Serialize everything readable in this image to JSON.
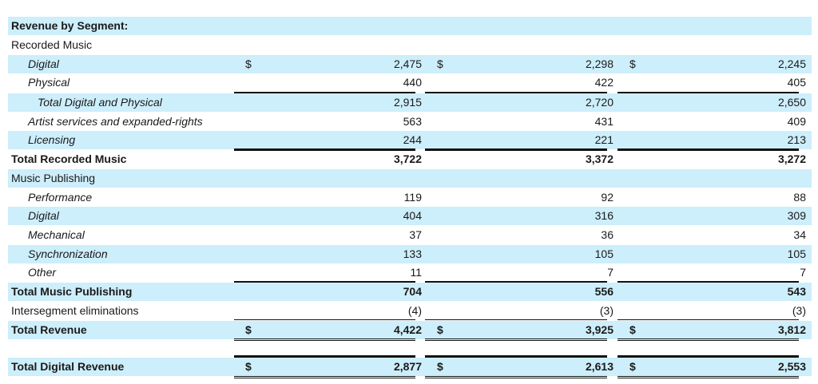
{
  "table": {
    "rows": [
      {
        "label": "Revenue by Segment:",
        "style": "bold",
        "shade": true,
        "values": [
          "",
          "",
          ""
        ]
      },
      {
        "label": "Recorded Music",
        "style": "normal",
        "shade": false,
        "values": [
          "",
          "",
          ""
        ]
      },
      {
        "label": "Digital",
        "style": "italic1",
        "shade": true,
        "values": [
          "2,475",
          "2,298",
          "2,245"
        ],
        "currency": true
      },
      {
        "label": "Physical",
        "style": "italic1",
        "shade": false,
        "values": [
          "440",
          "422",
          "405"
        ]
      },
      {
        "label": "Total Digital and Physical",
        "style": "italic2",
        "shade": true,
        "values": [
          "2,915",
          "2,720",
          "2,650"
        ]
      },
      {
        "label": "Artist services and expanded-rights",
        "style": "italic1",
        "shade": false,
        "values": [
          "563",
          "431",
          "409"
        ]
      },
      {
        "label": "Licensing",
        "style": "italic1",
        "shade": true,
        "values": [
          "244",
          "221",
          "213"
        ]
      },
      {
        "label": "Total Recorded Music",
        "style": "bold",
        "shade": false,
        "values": [
          "3,722",
          "3,372",
          "3,272"
        ]
      },
      {
        "label": "Music Publishing",
        "style": "normal",
        "shade": true,
        "values": [
          "",
          "",
          ""
        ]
      },
      {
        "label": "Performance",
        "style": "italic1",
        "shade": false,
        "values": [
          "119",
          "92",
          "88"
        ]
      },
      {
        "label": "Digital",
        "style": "italic1",
        "shade": true,
        "values": [
          "404",
          "316",
          "309"
        ]
      },
      {
        "label": "Mechanical",
        "style": "italic1",
        "shade": false,
        "values": [
          "37",
          "36",
          "34"
        ]
      },
      {
        "label": "Synchronization",
        "style": "italic1",
        "shade": true,
        "values": [
          "133",
          "105",
          "105"
        ]
      },
      {
        "label": "Other",
        "style": "italic1",
        "shade": false,
        "values": [
          "11",
          "7",
          "7"
        ]
      },
      {
        "label": "Total Music Publishing",
        "style": "bold",
        "shade": true,
        "values": [
          "704",
          "556",
          "543"
        ]
      },
      {
        "label": "Intersegment eliminations",
        "style": "normal",
        "shade": false,
        "values": [
          "(4)",
          "(3)",
          "(3)"
        ]
      },
      {
        "label": "Total Revenue",
        "style": "bold",
        "shade": true,
        "values": [
          "4,422",
          "3,925",
          "3,812"
        ],
        "currency": true
      },
      {
        "label": "Total Digital Revenue",
        "style": "bold",
        "shade": true,
        "values": [
          "2,877",
          "2,613",
          "2,553"
        ],
        "currency": true
      }
    ],
    "currency_symbol": "$"
  }
}
